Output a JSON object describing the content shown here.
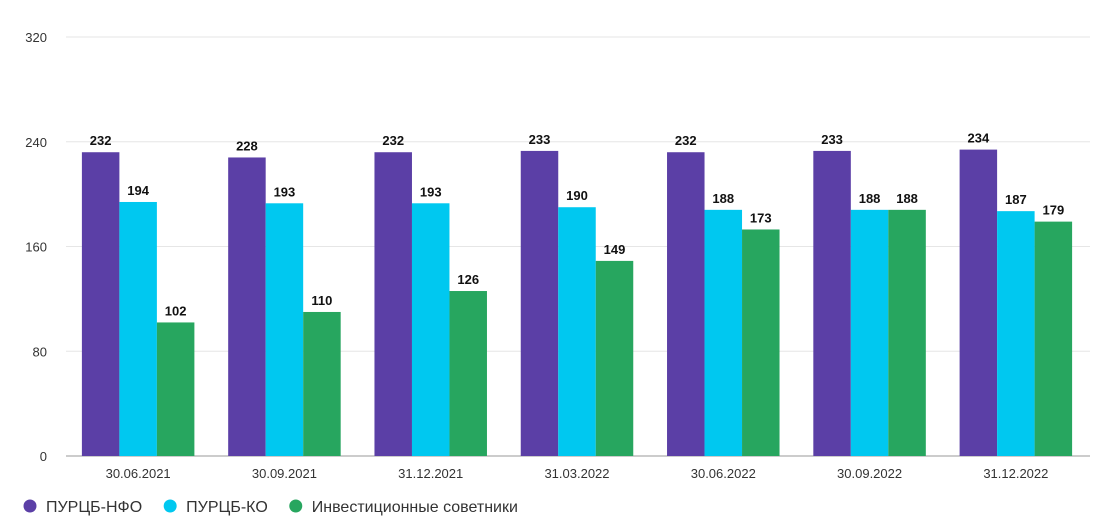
{
  "chart_data": {
    "type": "bar",
    "categories": [
      "30.06.2021",
      "30.09.2021",
      "31.12.2021",
      "31.03.2022",
      "30.06.2022",
      "30.09.2022",
      "31.12.2022"
    ],
    "series": [
      {
        "name": "ПУРЦБ-НФО",
        "color": "#5b3fa6",
        "values": [
          232,
          228,
          232,
          233,
          232,
          233,
          234
        ]
      },
      {
        "name": "ПУРЦБ-КО",
        "color": "#00c8f0",
        "values": [
          194,
          193,
          193,
          190,
          188,
          188,
          187
        ]
      },
      {
        "name": "Инвестиционные советники",
        "color": "#27a65f",
        "values": [
          102,
          110,
          126,
          149,
          173,
          188,
          179
        ]
      }
    ],
    "yticks": [
      0,
      80,
      160,
      240,
      320
    ],
    "ylim": [
      0,
      320
    ],
    "grid": true,
    "legend_position": "bottom-left",
    "data_labels": true,
    "title": "",
    "xlabel": "",
    "ylabel": ""
  }
}
